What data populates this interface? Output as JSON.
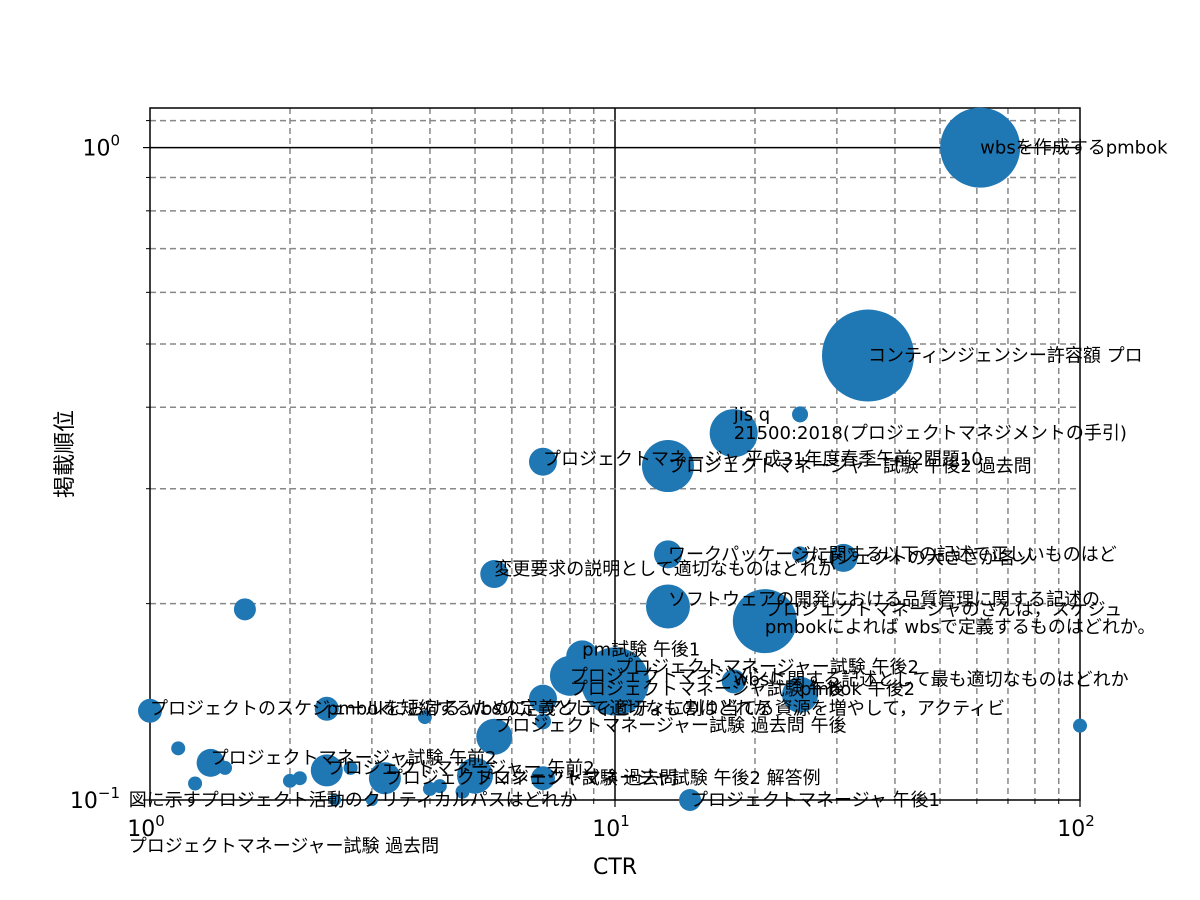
{
  "chart_data": {
    "type": "scatter",
    "xlabel": "CTR",
    "ylabel": "掲載順位",
    "xscale": "log",
    "yscale": "log",
    "xlim": [
      1,
      100
    ],
    "ylim": [
      0.1,
      1.15
    ],
    "grid": true,
    "x_ticks": [
      {
        "value": 1,
        "label": "10",
        "exp": "0"
      },
      {
        "value": 10,
        "label": "10",
        "exp": "1"
      },
      {
        "value": 100,
        "label": "10",
        "exp": "2"
      }
    ],
    "y_ticks": [
      {
        "value": 0.1,
        "label": "10",
        "exp": "−1"
      },
      {
        "value": 1,
        "label": "10",
        "exp": "0"
      }
    ],
    "points": [
      {
        "x": 61.0,
        "y": 1.0,
        "size": 40
      },
      {
        "x": 35.0,
        "y": 0.48,
        "size": 46
      },
      {
        "x": 25.0,
        "y": 0.39,
        "size": 8
      },
      {
        "x": 18.0,
        "y": 0.365,
        "size": 24
      },
      {
        "x": 13.0,
        "y": 0.325,
        "size": 26
      },
      {
        "x": 7.0,
        "y": 0.33,
        "size": 14
      },
      {
        "x": 13.0,
        "y": 0.238,
        "size": 14
      },
      {
        "x": 25.0,
        "y": 0.238,
        "size": 8
      },
      {
        "x": 31.0,
        "y": 0.235,
        "size": 14
      },
      {
        "x": 5.5,
        "y": 0.222,
        "size": 14
      },
      {
        "x": 1.6,
        "y": 0.196,
        "size": 11
      },
      {
        "x": 13.0,
        "y": 0.198,
        "size": 22
      },
      {
        "x": 21.0,
        "y": 0.188,
        "size": 32
      },
      {
        "x": 8.5,
        "y": 0.166,
        "size": 16
      },
      {
        "x": 8.0,
        "y": 0.155,
        "size": 20
      },
      {
        "x": 10.0,
        "y": 0.152,
        "size": 34
      },
      {
        "x": 18.0,
        "y": 0.152,
        "size": 12
      },
      {
        "x": 25.0,
        "y": 0.145,
        "size": 18
      },
      {
        "x": 7.0,
        "y": 0.143,
        "size": 14
      },
      {
        "x": 1.0,
        "y": 0.137,
        "size": 12
      },
      {
        "x": 2.4,
        "y": 0.138,
        "size": 12
      },
      {
        "x": 3.9,
        "y": 0.134,
        "size": 7
      },
      {
        "x": 7.0,
        "y": 0.132,
        "size": 8
      },
      {
        "x": 100.0,
        "y": 0.13,
        "size": 7
      },
      {
        "x": 5.5,
        "y": 0.125,
        "size": 18
      },
      {
        "x": 1.15,
        "y": 0.12,
        "size": 7
      },
      {
        "x": 1.35,
        "y": 0.114,
        "size": 14
      },
      {
        "x": 1.45,
        "y": 0.112,
        "size": 7
      },
      {
        "x": 2.4,
        "y": 0.111,
        "size": 16
      },
      {
        "x": 3.2,
        "y": 0.108,
        "size": 16
      },
      {
        "x": 2.7,
        "y": 0.112,
        "size": 7
      },
      {
        "x": 5.0,
        "y": 0.109,
        "size": 18
      },
      {
        "x": 7.0,
        "y": 0.108,
        "size": 12
      },
      {
        "x": 2.0,
        "y": 0.107,
        "size": 7
      },
      {
        "x": 2.1,
        "y": 0.108,
        "size": 7
      },
      {
        "x": 1.25,
        "y": 0.106,
        "size": 7
      },
      {
        "x": 4.2,
        "y": 0.105,
        "size": 7
      },
      {
        "x": 4.0,
        "y": 0.104,
        "size": 7
      },
      {
        "x": 4.7,
        "y": 0.103,
        "size": 7
      },
      {
        "x": 14.5,
        "y": 0.1,
        "size": 11
      },
      {
        "x": 2.5,
        "y": 0.1,
        "size": 6
      },
      {
        "x": 3.0,
        "y": 0.1,
        "size": 6
      }
    ],
    "annotations": [
      {
        "text": "wbsを作成するpmbok",
        "x": 61.0,
        "y": 1.0
      },
      {
        "text": "コンティンジェンシー許容額 プロ",
        "x": 35.0,
        "y": 0.48
      },
      {
        "text": "jis q",
        "x": 18.0,
        "y": 0.39
      },
      {
        "text": "21500:2018(プロジェクトマネジメントの手引)",
        "x": 18.0,
        "y": 0.365
      },
      {
        "text": "プロジェクトマネージャ 平成31年度春季午前2問題10",
        "x": 7.0,
        "y": 0.333
      },
      {
        "text": "プロジェクトマネージャー試験 午後2 過去問",
        "x": 13.0,
        "y": 0.325
      },
      {
        "text": "ワークパッケージに関する以下の記述で正しいものはど",
        "x": 13.0,
        "y": 0.238
      },
      {
        "text": "プロジェクトの大きさが各ゾ",
        "x": 25.0,
        "y": 0.235
      },
      {
        "text": "変更要求の説明として適切なものはどれか",
        "x": 5.5,
        "y": 0.226
      },
      {
        "text": "ソフトウェアの開発における品質管理に関する記述の",
        "x": 13.0,
        "y": 0.203
      },
      {
        "text": "プロジェクトマネージャのさんは，スケジュ",
        "x": 21.0,
        "y": 0.196
      },
      {
        "text": "pmbokによれば wbsで定義するものはどれか。",
        "x": 21.0,
        "y": 0.184
      },
      {
        "text": "pm試験 午後1",
        "x": 8.5,
        "y": 0.17
      },
      {
        "text": "プロジェクトマネージャー試験 午後2",
        "x": 10.0,
        "y": 0.16
      },
      {
        "text": "プロジェクトマネジメント",
        "x": 8.0,
        "y": 0.155
      },
      {
        "text": "wbsに関する記述として最も適切なものはどれか",
        "x": 18.0,
        "y": 0.153
      },
      {
        "text": "プロジェクトマネージャ試験 午後",
        "x": 8.0,
        "y": 0.148
      },
      {
        "text": "pmbok 午後2",
        "x": 25.0,
        "y": 0.148
      },
      {
        "text": "プロジェクトのスケジュールを短縮するために，アクティビティに割り当てる資源を増やして，アクティビ",
        "x": 1.0,
        "y": 0.138
      },
      {
        "text": "pmbokにおける wbsの定義として適切なものはどれか",
        "x": 2.4,
        "y": 0.138
      },
      {
        "text": "プロジェクトマネージャー試験 過去問 午後",
        "x": 5.5,
        "y": 0.13
      },
      {
        "text": "プロジェクトマネージャ試験 午前2",
        "x": 1.35,
        "y": 0.116
      },
      {
        "text": "プロジェクトマネージャー 午前2",
        "x": 2.4,
        "y": 0.112
      },
      {
        "text": "プロジェクトマネージャ試験 過去問",
        "x": 3.2,
        "y": 0.108
      },
      {
        "text": "プロジェクトマネージャ試験 午後2 解答例",
        "x": 5.0,
        "y": 0.108
      },
      {
        "text": "図に示すプロジェクト活動のクリティカルパスはどれか",
        "x": 0.9,
        "y": 0.1
      },
      {
        "text": "プロジェクトマネージャ 午後1",
        "x": 14.5,
        "y": 0.1
      },
      {
        "text": "プロジェクトマネージャー試験 過去問",
        "x": 0.9,
        "y": 0.085
      }
    ]
  }
}
